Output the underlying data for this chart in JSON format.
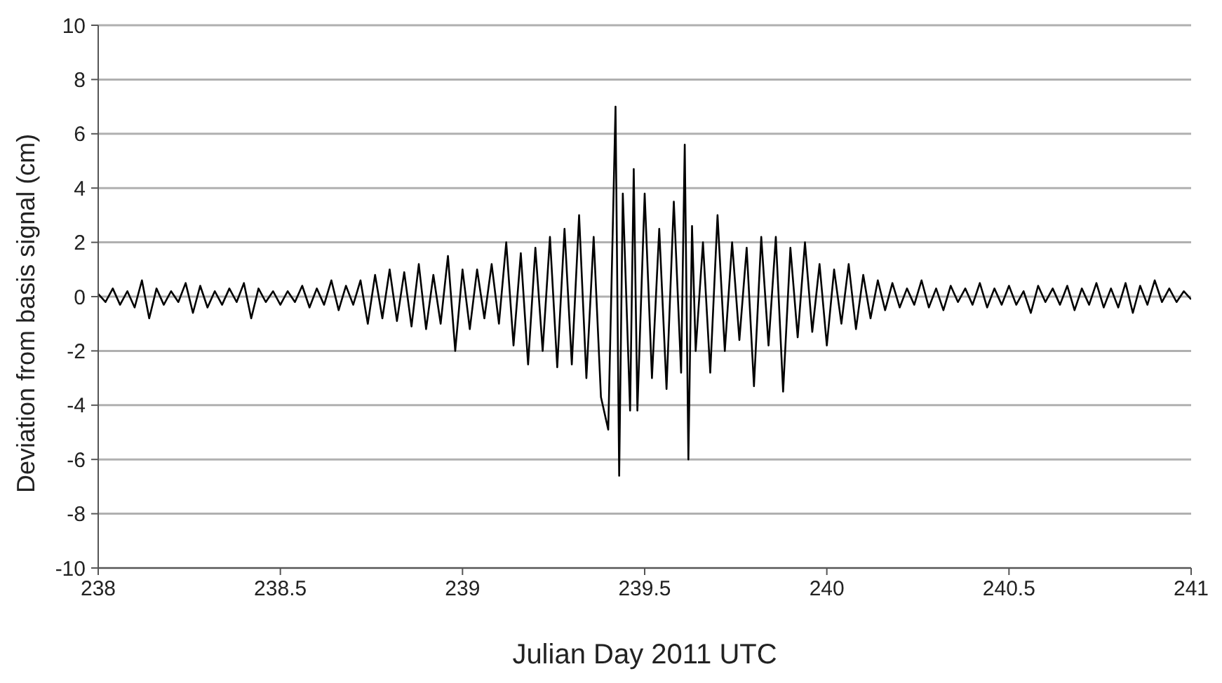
{
  "chart_data": {
    "type": "line",
    "xlabel": "Julian Day 2011 UTC",
    "ylabel": "Deviation from basis signal (cm)",
    "xlim": [
      238,
      241
    ],
    "xticks": [
      238,
      238.5,
      239,
      239.5,
      240,
      240.5,
      241
    ],
    "ylim": [
      -10,
      10
    ],
    "yticks": [
      -10,
      -8,
      -6,
      -4,
      -2,
      0,
      2,
      4,
      6,
      8,
      10
    ],
    "grid": "y",
    "marker": "none",
    "line_style": "solid",
    "x": [
      238.0,
      238.02,
      238.04,
      238.06,
      238.08,
      238.1,
      238.12,
      238.14,
      238.16,
      238.18,
      238.2,
      238.22,
      238.24,
      238.26,
      238.28,
      238.3,
      238.32,
      238.34,
      238.36,
      238.38,
      238.4,
      238.42,
      238.44,
      238.46,
      238.48,
      238.5,
      238.52,
      238.54,
      238.56,
      238.58,
      238.6,
      238.62,
      238.64,
      238.66,
      238.68,
      238.7,
      238.72,
      238.74,
      238.76,
      238.78,
      238.8,
      238.82,
      238.84,
      238.86,
      238.88,
      238.9,
      238.92,
      238.94,
      238.96,
      238.98,
      239.0,
      239.02,
      239.04,
      239.06,
      239.08,
      239.1,
      239.12,
      239.14,
      239.16,
      239.18,
      239.2,
      239.22,
      239.24,
      239.26,
      239.28,
      239.3,
      239.32,
      239.34,
      239.36,
      239.38,
      239.4,
      239.42,
      239.43,
      239.44,
      239.46,
      239.47,
      239.48,
      239.5,
      239.52,
      239.54,
      239.56,
      239.58,
      239.6,
      239.61,
      239.62,
      239.63,
      239.64,
      239.66,
      239.68,
      239.7,
      239.72,
      239.74,
      239.76,
      239.78,
      239.8,
      239.82,
      239.84,
      239.86,
      239.88,
      239.9,
      239.92,
      239.94,
      239.96,
      239.98,
      240.0,
      240.02,
      240.04,
      240.06,
      240.08,
      240.1,
      240.12,
      240.14,
      240.16,
      240.18,
      240.2,
      240.22,
      240.24,
      240.26,
      240.28,
      240.3,
      240.32,
      240.34,
      240.36,
      240.38,
      240.4,
      240.42,
      240.44,
      240.46,
      240.48,
      240.5,
      240.52,
      240.54,
      240.56,
      240.58,
      240.6,
      240.62,
      240.64,
      240.66,
      240.68,
      240.7,
      240.72,
      240.74,
      240.76,
      240.78,
      240.8,
      240.82,
      240.84,
      240.86,
      240.88,
      240.9,
      240.92,
      240.94,
      240.96,
      240.98,
      241.0
    ],
    "series": [
      {
        "color": "#000000",
        "values": [
          0.1,
          -0.2,
          0.3,
          -0.3,
          0.2,
          -0.4,
          0.6,
          -0.8,
          0.3,
          -0.3,
          0.2,
          -0.2,
          0.5,
          -0.6,
          0.4,
          -0.4,
          0.2,
          -0.3,
          0.3,
          -0.2,
          0.5,
          -0.8,
          0.3,
          -0.2,
          0.2,
          -0.3,
          0.2,
          -0.2,
          0.4,
          -0.4,
          0.3,
          -0.3,
          0.6,
          -0.5,
          0.4,
          -0.3,
          0.6,
          -1.0,
          0.8,
          -0.8,
          1.0,
          -0.9,
          0.9,
          -1.1,
          1.2,
          -1.2,
          0.8,
          -1.0,
          1.5,
          -2.0,
          1.0,
          -1.2,
          1.0,
          -0.8,
          1.2,
          -1.0,
          2.0,
          -1.8,
          1.6,
          -2.5,
          1.8,
          -2.0,
          2.2,
          -2.6,
          2.5,
          -2.5,
          3.0,
          -3.0,
          2.2,
          -3.7,
          -4.9,
          7.0,
          -6.6,
          3.8,
          -4.2,
          4.7,
          -4.2,
          3.8,
          -3.0,
          2.5,
          -3.4,
          3.5,
          -2.8,
          5.6,
          -6.0,
          2.6,
          -2.0,
          2.0,
          -2.8,
          3.0,
          -2.0,
          2.0,
          -1.6,
          1.8,
          -3.3,
          2.2,
          -1.8,
          2.2,
          -3.5,
          1.8,
          -1.5,
          2.0,
          -1.3,
          1.2,
          -1.8,
          1.0,
          -1.0,
          1.2,
          -1.2,
          0.8,
          -0.8,
          0.6,
          -0.5,
          0.5,
          -0.4,
          0.3,
          -0.3,
          0.6,
          -0.4,
          0.3,
          -0.5,
          0.4,
          -0.2,
          0.3,
          -0.3,
          0.5,
          -0.4,
          0.3,
          -0.3,
          0.4,
          -0.3,
          0.2,
          -0.6,
          0.4,
          -0.2,
          0.3,
          -0.3,
          0.4,
          -0.5,
          0.3,
          -0.3,
          0.5,
          -0.4,
          0.3,
          -0.4,
          0.5,
          -0.6,
          0.4,
          -0.3,
          0.6,
          -0.2,
          0.3,
          -0.2,
          0.2,
          -0.1
        ]
      }
    ]
  }
}
